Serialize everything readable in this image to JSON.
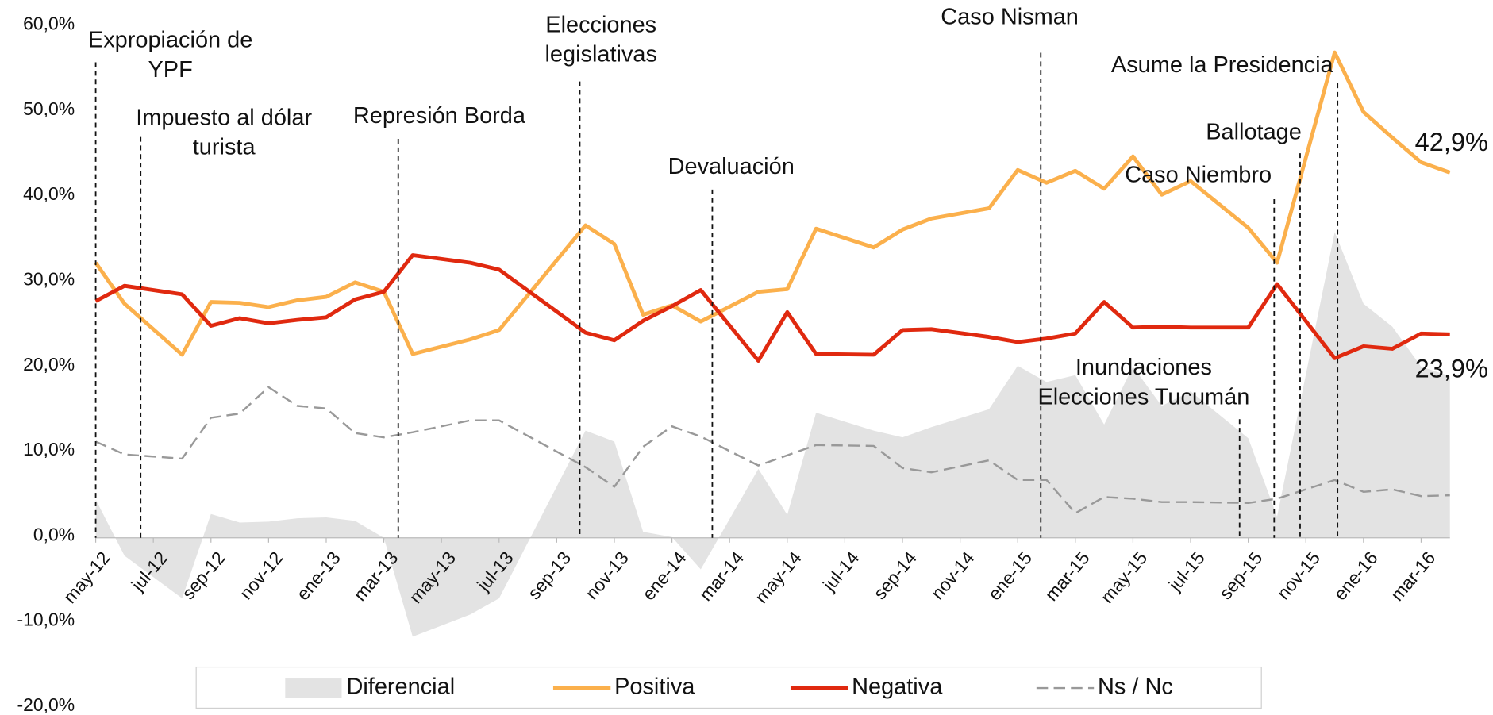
{
  "chart_data": {
    "type": "line",
    "x": [
      0,
      1,
      3,
      4,
      5,
      6,
      7,
      8,
      9,
      10,
      11,
      13,
      14,
      17,
      18,
      19,
      20,
      21,
      23,
      24,
      25,
      27,
      28,
      29,
      31,
      32,
      33,
      34,
      35,
      36,
      37,
      38,
      40,
      41,
      43,
      44,
      45,
      46,
      47
    ],
    "xlim": [
      0,
      47
    ],
    "xticks": [
      {
        "value": 0,
        "label": "may-12"
      },
      {
        "value": 2,
        "label": "jul-12"
      },
      {
        "value": 4,
        "label": "sep-12"
      },
      {
        "value": 6,
        "label": "nov-12"
      },
      {
        "value": 8,
        "label": "ene-13"
      },
      {
        "value": 10,
        "label": "mar-13"
      },
      {
        "value": 12,
        "label": "may-13"
      },
      {
        "value": 14,
        "label": "jul-13"
      },
      {
        "value": 16,
        "label": "sep-13"
      },
      {
        "value": 18,
        "label": "nov-13"
      },
      {
        "value": 20,
        "label": "ene-14"
      },
      {
        "value": 22,
        "label": "mar-14"
      },
      {
        "value": 24,
        "label": "may-14"
      },
      {
        "value": 26,
        "label": "jul-14"
      },
      {
        "value": 28,
        "label": "sep-14"
      },
      {
        "value": 30,
        "label": "nov-14"
      },
      {
        "value": 32,
        "label": "ene-15"
      },
      {
        "value": 34,
        "label": "mar-15"
      },
      {
        "value": 36,
        "label": "may-15"
      },
      {
        "value": 38,
        "label": "jul-15"
      },
      {
        "value": 40,
        "label": "sep-15"
      },
      {
        "value": 42,
        "label": "nov-15"
      },
      {
        "value": 44,
        "label": "ene-16"
      },
      {
        "value": 46,
        "label": "mar-16"
      }
    ],
    "ylim": [
      -20,
      60
    ],
    "yticks": [
      {
        "value": -20,
        "label": "-20,0%"
      },
      {
        "value": -10,
        "label": "-10,0%"
      },
      {
        "value": 0,
        "label": "0,0%"
      },
      {
        "value": 10,
        "label": "10,0%"
      },
      {
        "value": 20,
        "label": "20,0%"
      },
      {
        "value": 30,
        "label": "30,0%"
      },
      {
        "value": 40,
        "label": "40,0%"
      },
      {
        "value": 50,
        "label": "50,0%"
      },
      {
        "value": 60,
        "label": "60,0%"
      }
    ],
    "series": [
      {
        "name": "Diferencial",
        "type": "area",
        "color": "#e3e3e3",
        "values": [
          4.5,
          -2.1,
          -7.1,
          2.8,
          1.8,
          1.9,
          2.3,
          2.4,
          2.0,
          0.0,
          -11.6,
          -9.0,
          -7.1,
          12.6,
          11.3,
          0.7,
          0.1,
          -3.7,
          8.1,
          2.7,
          14.7,
          12.6,
          11.8,
          13.0,
          15.1,
          20.2,
          18.3,
          19.1,
          13.3,
          20.1,
          15.5,
          17.2,
          11.7,
          2.5,
          35.9,
          27.5,
          24.8,
          20.1,
          19.0
        ]
      },
      {
        "name": "Positiva",
        "color": "#fbb04c",
        "values": [
          32.3,
          27.5,
          21.5,
          27.7,
          27.6,
          27.1,
          27.9,
          28.3,
          30.0,
          28.9,
          21.6,
          23.3,
          24.4,
          36.7,
          34.5,
          26.2,
          27.3,
          25.4,
          28.9,
          29.2,
          36.3,
          34.1,
          36.2,
          37.5,
          38.7,
          43.2,
          41.7,
          43.1,
          41.0,
          44.8,
          40.3,
          41.9,
          36.4,
          32.3,
          57.0,
          50.0,
          47.0,
          44.1,
          42.9
        ],
        "value_labels": [
          null,
          null,
          null,
          null,
          null,
          null,
          null,
          null,
          null,
          null,
          null,
          null,
          null,
          null,
          null,
          null,
          null,
          null,
          null,
          null,
          null,
          null,
          null,
          null,
          null,
          null,
          null,
          null,
          null,
          null,
          null,
          null,
          null,
          null,
          null,
          null,
          null,
          null,
          "42,9%"
        ]
      },
      {
        "name": "Negativa",
        "color": "#e0290f",
        "values": [
          27.8,
          29.6,
          28.6,
          24.9,
          25.8,
          25.2,
          25.6,
          25.9,
          28.0,
          28.9,
          33.2,
          32.3,
          31.5,
          24.1,
          23.2,
          25.5,
          27.2,
          29.1,
          20.8,
          26.5,
          21.6,
          21.5,
          24.4,
          24.5,
          23.6,
          23.0,
          23.4,
          24.0,
          27.7,
          24.7,
          24.8,
          24.7,
          24.7,
          29.8,
          21.1,
          22.5,
          22.2,
          24.0,
          23.9
        ],
        "value_labels": [
          null,
          null,
          null,
          null,
          null,
          null,
          null,
          null,
          null,
          null,
          null,
          null,
          null,
          null,
          null,
          null,
          null,
          null,
          null,
          null,
          null,
          null,
          null,
          null,
          null,
          null,
          null,
          null,
          null,
          null,
          null,
          null,
          null,
          null,
          null,
          null,
          null,
          null,
          "23,9%"
        ]
      },
      {
        "name": "Ns / Nc",
        "color": "#999999",
        "dashed": true,
        "values": [
          11.3,
          9.8,
          9.3,
          14.1,
          14.6,
          17.7,
          15.5,
          15.2,
          12.3,
          11.8,
          12.4,
          13.8,
          13.8,
          8.3,
          6.0,
          10.7,
          13.1,
          11.9,
          8.5,
          9.7,
          10.9,
          10.8,
          8.2,
          7.7,
          9.1,
          6.8,
          6.8,
          2.9,
          4.8,
          4.6,
          4.2,
          4.2,
          4.1,
          4.6,
          6.8,
          5.4,
          5.7,
          4.9,
          5.0
        ]
      }
    ],
    "annotations": [
      {
        "x": 0,
        "label": [
          "Expropiación de",
          "YPF"
        ]
      },
      {
        "x": 1.56,
        "label": [
          "Impuesto al dólar",
          "turista"
        ]
      },
      {
        "x": 10.5,
        "label": [
          "Represión Borda"
        ]
      },
      {
        "x": 16.8,
        "label": [
          "Elecciones",
          "legislativas"
        ]
      },
      {
        "x": 21.4,
        "label": [
          "Devaluación"
        ]
      },
      {
        "x": 32.8,
        "label": [
          "Caso Nisman"
        ]
      },
      {
        "x": 39.7,
        "label": [
          "Inundaciones",
          "Elecciones Tucumán"
        ]
      },
      {
        "x": 40.9,
        "label": [
          "Caso Niembro"
        ]
      },
      {
        "x": 41.8,
        "label": [
          "Ballotage"
        ]
      },
      {
        "x": 43.1,
        "label": [
          "Asume la Presidencia"
        ]
      }
    ],
    "legend": "bottom"
  }
}
